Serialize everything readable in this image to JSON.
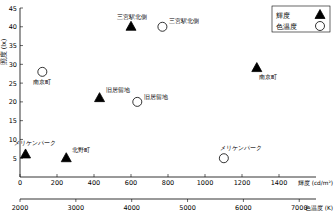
{
  "chart_data": {
    "type": "scatter",
    "y_label": "照度 (lx)",
    "x_label": "輝度 (cd/m²)",
    "x2_label": "色温度 (K)",
    "ylim": [
      0,
      45
    ],
    "yticks": [
      5,
      10,
      15,
      20,
      25,
      30,
      35,
      40,
      45
    ],
    "xlim": [
      0,
      1600
    ],
    "xticks": [
      0,
      200,
      400,
      600,
      800,
      1000,
      1200,
      1400
    ],
    "x2lim": [
      2000,
      7300
    ],
    "x2ticks": [
      2000,
      3000,
      4000,
      5000,
      6000,
      7000
    ],
    "legend": "upper right",
    "grid": false,
    "series": [
      {
        "name": "輝度",
        "marker": "triangle",
        "color": "#000000",
        "axis": "x",
        "labels": [
          "三宮駅北側",
          "旧居留地",
          "南京町",
          "メリケンパーク",
          "北野町"
        ],
        "x": [
          600,
          430,
          1280,
          30,
          250
        ],
        "values": [
          40,
          21,
          29,
          6,
          5
        ]
      },
      {
        "name": "色温度",
        "marker": "circle",
        "color": "#ffffff",
        "axis": "x2",
        "labels": [
          "三宮駅北側",
          "南京町",
          "旧居留地",
          "メリケンパーク"
        ],
        "x": [
          4550,
          2400,
          4100,
          5650
        ],
        "values": [
          40,
          28,
          20,
          5
        ]
      }
    ]
  }
}
